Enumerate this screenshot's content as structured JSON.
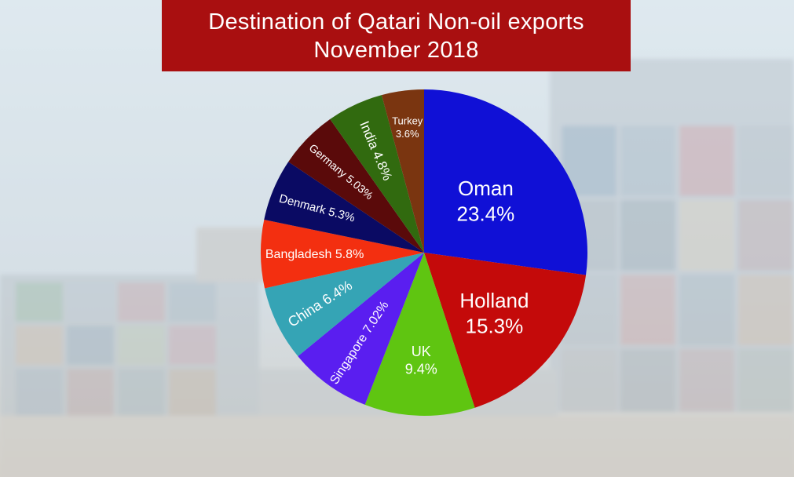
{
  "title": {
    "line1": "Destination of Qatari Non-oil exports",
    "line2": "November 2018"
  },
  "chart_data": {
    "type": "pie",
    "title": "Destination of Qatari Non-oil exports November 2018",
    "unit": "%",
    "slices": [
      {
        "label": "Oman",
        "value_text": "23.4%",
        "value": 23.4,
        "color": "#1010d6"
      },
      {
        "label": "Holland",
        "value_text": "15.3%",
        "value": 15.3,
        "color": "#c40a0a"
      },
      {
        "label": "UK",
        "value_text": "9.4%",
        "value": 9.4,
        "color": "#5fc511"
      },
      {
        "label": "Singapore",
        "value_text": "7.02%",
        "value": 7.02,
        "color": "#5a1ef0"
      },
      {
        "label": "China",
        "value_text": "6.4%",
        "value": 6.4,
        "color": "#35a4b5"
      },
      {
        "label": "Bangladesh",
        "value_text": "5.8%",
        "value": 5.8,
        "color": "#f32f10"
      },
      {
        "label": "Denmark",
        "value_text": "5.3%",
        "value": 5.3,
        "color": "#0a0a63"
      },
      {
        "label": "Germany",
        "value_text": "5.03%",
        "value": 5.03,
        "color": "#5a0a0a"
      },
      {
        "label": "India",
        "value_text": "4.8%",
        "value": 4.8,
        "color": "#316a0f"
      },
      {
        "label": "Turkey",
        "value_text": "3.6%",
        "value": 3.6,
        "color": "#7a3510"
      }
    ]
  }
}
